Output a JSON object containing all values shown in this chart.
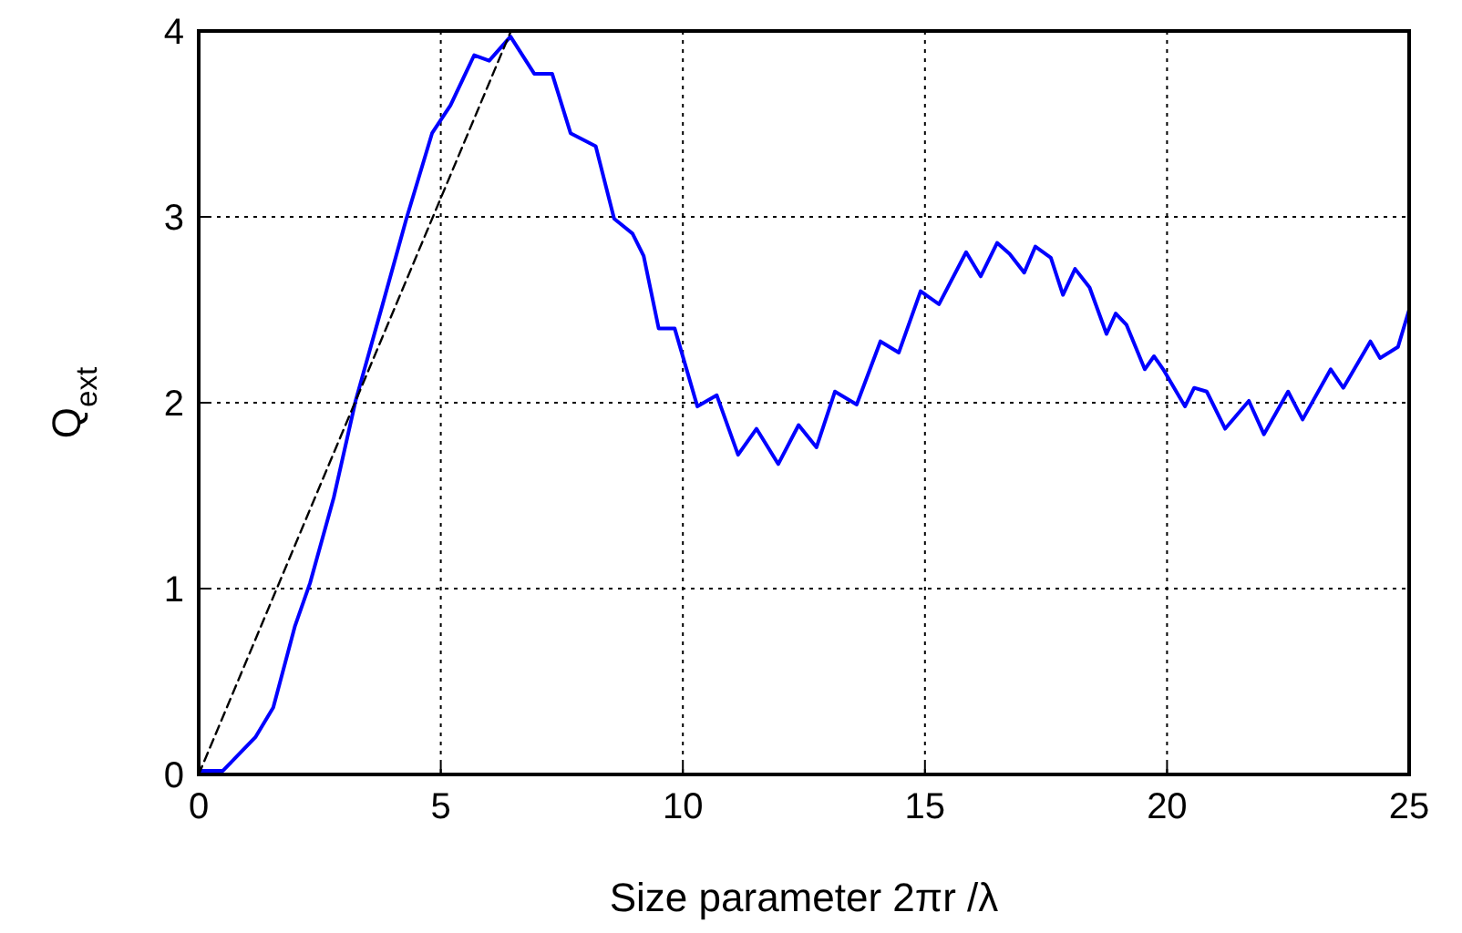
{
  "chart_data": {
    "type": "line",
    "xlabel": "Size parameter 2πr /λ",
    "ylabel": "Q$_{ext}$",
    "xlim": [
      0,
      25
    ],
    "ylim": [
      0,
      4
    ],
    "xticks": [
      0,
      5,
      10,
      15,
      20,
      25
    ],
    "yticks": [
      0,
      1,
      2,
      3,
      4
    ],
    "grid": true,
    "series": [
      {
        "color": "#0000ff",
        "line_style": "solid",
        "x": [
          0,
          0.5,
          1.17,
          1.54,
          1.99,
          2.3,
          2.79,
          3.24,
          3.8,
          4.29,
          4.82,
          5.2,
          5.69,
          6.0,
          6.44,
          6.93,
          7.3,
          7.68,
          8.2,
          8.58,
          8.96,
          9.19,
          9.5,
          9.83,
          10.3,
          10.7,
          11.14,
          11.52,
          11.97,
          12.39,
          12.76,
          13.14,
          13.59,
          14.08,
          14.46,
          14.91,
          15.29,
          15.85,
          16.15,
          16.49,
          16.75,
          17.05,
          17.28,
          17.6,
          17.85,
          18.1,
          18.4,
          18.75,
          18.94,
          19.16,
          19.54,
          19.73,
          19.92,
          20.37,
          20.56,
          20.82,
          21.2,
          21.69,
          22,
          22.5,
          22.8,
          23.38,
          23.64,
          24.2,
          24.4,
          24.77,
          25
        ],
        "values": [
          0.02,
          0.02,
          0.2,
          0.36,
          0.8,
          1.03,
          1.49,
          2.01,
          2.53,
          2.99,
          3.45,
          3.6,
          3.87,
          3.84,
          3.97,
          3.77,
          3.77,
          3.45,
          3.38,
          2.99,
          2.91,
          2.79,
          2.4,
          2.4,
          1.98,
          2.04,
          1.72,
          1.86,
          1.67,
          1.88,
          1.76,
          2.06,
          1.99,
          2.33,
          2.27,
          2.6,
          2.53,
          2.81,
          2.68,
          2.86,
          2.8,
          2.7,
          2.84,
          2.78,
          2.58,
          2.72,
          2.62,
          2.37,
          2.48,
          2.42,
          2.18,
          2.25,
          2.18,
          1.98,
          2.08,
          2.06,
          1.86,
          2.01,
          1.83,
          2.06,
          1.91,
          2.18,
          2.08,
          2.33,
          2.24,
          2.3,
          2.5
        ]
      },
      {
        "color": "#000000",
        "line_style": "dashed",
        "x": [
          0,
          6.45
        ],
        "values": [
          0,
          4
        ]
      }
    ]
  }
}
